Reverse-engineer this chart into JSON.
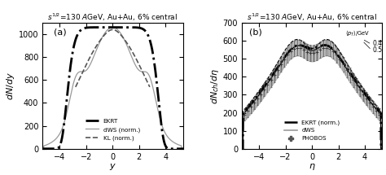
{
  "title": "$s^{1/2}$=130 $A$GeV, Au+Au, 6% central",
  "panel_a": {
    "label": "(a)",
    "xlabel": "$y$",
    "ylabel": "$dN/dy$",
    "xlim": [
      -5.3,
      5.3
    ],
    "ylim": [
      0,
      1100
    ],
    "yticks": [
      0,
      200,
      400,
      600,
      800,
      1000
    ],
    "xticks": [
      -4,
      -2,
      0,
      2,
      4
    ],
    "legend": [
      "EKRT",
      "dWS (norm.)",
      "KL (norm.)"
    ]
  },
  "panel_b": {
    "label": "(b)",
    "xlabel": "$\\eta$",
    "ylabel": "$dN_{ch}/d\\eta$",
    "xlim": [
      -5.3,
      5.3
    ],
    "ylim": [
      0,
      700
    ],
    "yticks": [
      0,
      100,
      200,
      300,
      400,
      500,
      600,
      700
    ],
    "xticks": [
      -4,
      -2,
      0,
      2,
      4
    ],
    "legend": [
      "EKRT (norm.)",
      "dWS",
      "PHOBOS"
    ]
  },
  "colors": {
    "ekrt": "#000000",
    "dws": "#999999",
    "kl": "#555555",
    "shading": "#bbbbbb"
  }
}
